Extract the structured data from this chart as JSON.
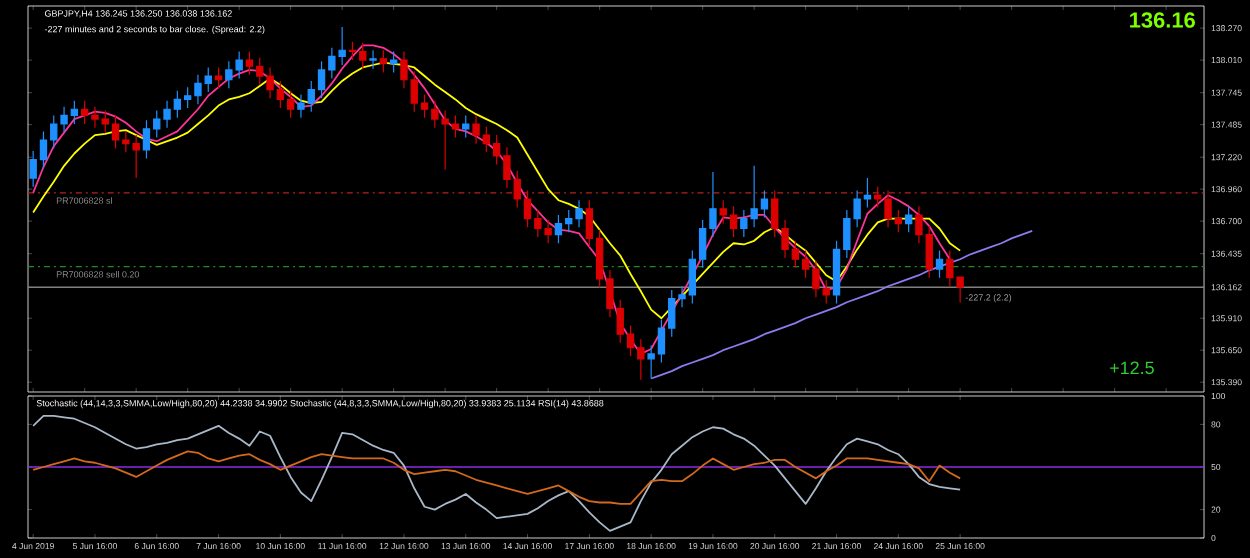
{
  "chart_data": [
    {
      "type": "candlestick",
      "annotations": [
        "GBPJPY,H4  136.245 136.250 136.038 136.162",
        "-227 minutes and 2 seconds to bar close. (Spread: 2.2)",
        "136.16",
        "+12.5",
        "-227.2 (2.2)"
      ],
      "categories": [
        null,
        null,
        null,
        null,
        null,
        null,
        null,
        null,
        null,
        null,
        null,
        null,
        null,
        null,
        null,
        null,
        null,
        null,
        null,
        null,
        null,
        null,
        null,
        null,
        null,
        null,
        null,
        null,
        null,
        null,
        null,
        null,
        null,
        null,
        null,
        null,
        null,
        null,
        null,
        null,
        null,
        null,
        null,
        null,
        null,
        null,
        null,
        null,
        null,
        null,
        null,
        null,
        null,
        null,
        null,
        null,
        null,
        null,
        null,
        null,
        null,
        null,
        null,
        null,
        null,
        null,
        null,
        null,
        null,
        null,
        null,
        null,
        null,
        null,
        null,
        null,
        null,
        null,
        null,
        null,
        null,
        null,
        null,
        null,
        null,
        null,
        null,
        null,
        null,
        null,
        null,
        null,
        null,
        null,
        null,
        null,
        null,
        null
      ],
      "ohlc": [
        [
          137.05,
          137.27,
          136.98,
          137.2
        ],
        [
          137.2,
          137.43,
          137.13,
          137.36
        ],
        [
          137.36,
          137.56,
          137.29,
          137.49
        ],
        [
          137.49,
          137.63,
          137.42,
          137.56
        ],
        [
          137.56,
          137.68,
          137.49,
          137.61
        ],
        [
          137.61,
          137.68,
          137.49,
          137.56
        ],
        [
          137.56,
          137.63,
          137.46,
          137.53
        ],
        [
          137.53,
          137.6,
          137.42,
          137.49
        ],
        [
          137.49,
          137.56,
          137.29,
          137.36
        ],
        [
          137.36,
          137.43,
          137.26,
          137.33
        ],
        [
          137.33,
          137.4,
          137.05,
          137.28
        ],
        [
          137.28,
          137.52,
          137.21,
          137.45
        ],
        [
          137.45,
          137.6,
          137.38,
          137.53
        ],
        [
          137.53,
          137.68,
          137.46,
          137.61
        ],
        [
          137.61,
          137.76,
          137.54,
          137.69
        ],
        [
          137.69,
          137.79,
          137.62,
          137.72
        ],
        [
          137.72,
          137.89,
          137.65,
          137.82
        ],
        [
          137.82,
          137.95,
          137.75,
          137.88
        ],
        [
          137.88,
          137.95,
          137.78,
          137.85
        ],
        [
          137.85,
          138.0,
          137.78,
          137.93
        ],
        [
          137.93,
          138.08,
          137.86,
          138.01
        ],
        [
          138.01,
          138.08,
          137.89,
          137.96
        ],
        [
          137.96,
          138.03,
          137.81,
          137.88
        ],
        [
          137.88,
          137.95,
          137.7,
          137.77
        ],
        [
          137.77,
          137.84,
          137.62,
          137.69
        ],
        [
          137.69,
          137.76,
          137.54,
          137.61
        ],
        [
          137.61,
          137.73,
          137.54,
          137.66
        ],
        [
          137.66,
          137.84,
          137.59,
          137.77
        ],
        [
          137.77,
          138.0,
          137.7,
          137.93
        ],
        [
          137.93,
          138.11,
          137.86,
          138.04
        ],
        [
          138.04,
          138.28,
          137.97,
          138.09
        ],
        [
          138.09,
          138.16,
          138.01,
          138.08
        ],
        [
          138.08,
          138.15,
          137.94,
          138.01
        ],
        [
          138.01,
          138.09,
          137.94,
          138.02
        ],
        [
          138.02,
          138.09,
          137.91,
          137.98
        ],
        [
          137.98,
          138.08,
          137.91,
          138.01
        ],
        [
          138.01,
          138.08,
          137.78,
          137.85
        ],
        [
          137.85,
          137.92,
          137.59,
          137.66
        ],
        [
          137.66,
          137.73,
          137.54,
          137.61
        ],
        [
          137.61,
          137.68,
          137.46,
          137.53
        ],
        [
          137.53,
          137.6,
          137.12,
          137.49
        ],
        [
          137.49,
          137.56,
          137.38,
          137.45
        ],
        [
          137.45,
          137.56,
          137.38,
          137.49
        ],
        [
          137.49,
          137.56,
          137.33,
          137.4
        ],
        [
          137.4,
          137.47,
          137.26,
          137.33
        ],
        [
          137.33,
          137.4,
          137.16,
          137.23
        ],
        [
          137.23,
          137.3,
          136.97,
          137.04
        ],
        [
          137.04,
          137.11,
          136.81,
          136.88
        ],
        [
          136.88,
          136.95,
          136.65,
          136.72
        ],
        [
          136.72,
          136.79,
          136.57,
          136.64
        ],
        [
          136.64,
          136.71,
          136.52,
          136.59
        ],
        [
          136.59,
          136.75,
          136.52,
          136.68
        ],
        [
          136.68,
          136.79,
          136.61,
          136.72
        ],
        [
          136.72,
          136.87,
          136.65,
          136.8
        ],
        [
          136.8,
          136.87,
          136.49,
          136.56
        ],
        [
          136.56,
          136.63,
          136.16,
          136.23
        ],
        [
          136.23,
          136.3,
          135.92,
          135.99
        ],
        [
          135.99,
          136.06,
          135.71,
          135.78
        ],
        [
          135.78,
          135.85,
          135.6,
          135.67
        ],
        [
          135.67,
          135.74,
          135.41,
          135.58
        ],
        [
          135.58,
          135.69,
          135.42,
          135.62
        ],
        [
          135.62,
          135.9,
          135.55,
          135.83
        ],
        [
          135.83,
          136.14,
          135.76,
          136.07
        ],
        [
          136.07,
          136.17,
          136.0,
          136.1
        ],
        [
          136.1,
          136.46,
          136.03,
          136.39
        ],
        [
          136.39,
          136.71,
          136.32,
          136.64
        ],
        [
          136.64,
          137.1,
          136.57,
          136.8
        ],
        [
          136.8,
          136.87,
          136.68,
          136.75
        ],
        [
          136.75,
          136.82,
          136.57,
          136.64
        ],
        [
          136.64,
          136.79,
          136.57,
          136.72
        ],
        [
          136.72,
          137.15,
          136.65,
          136.8
        ],
        [
          136.8,
          136.95,
          136.73,
          136.88
        ],
        [
          136.88,
          136.95,
          136.57,
          136.64
        ],
        [
          136.64,
          136.71,
          136.4,
          136.47
        ],
        [
          136.47,
          136.54,
          136.32,
          136.39
        ],
        [
          136.39,
          136.46,
          136.24,
          136.31
        ],
        [
          136.31,
          136.38,
          136.08,
          136.15
        ],
        [
          136.15,
          136.22,
          136.03,
          136.1
        ],
        [
          136.1,
          136.54,
          136.03,
          136.47
        ],
        [
          136.47,
          136.79,
          136.4,
          136.72
        ],
        [
          136.72,
          136.95,
          136.65,
          136.88
        ],
        [
          136.88,
          137.05,
          136.81,
          136.91
        ],
        [
          136.91,
          136.98,
          136.81,
          136.88
        ],
        [
          136.88,
          136.95,
          136.65,
          136.72
        ],
        [
          136.72,
          136.79,
          136.61,
          136.68
        ],
        [
          136.68,
          136.82,
          136.61,
          136.75
        ],
        [
          136.75,
          136.82,
          136.52,
          136.59
        ],
        [
          136.59,
          136.66,
          136.24,
          136.31
        ],
        [
          136.31,
          136.46,
          136.24,
          136.39
        ],
        [
          136.39,
          136.46,
          136.17,
          136.24
        ],
        [
          136.245,
          136.25,
          136.038,
          136.162
        ],
        null,
        null,
        null,
        null,
        null,
        null,
        null
      ],
      "colors": [
        "#1e90ff",
        "#1e90ff",
        "#1e90ff",
        "#1e90ff",
        "#1e90ff",
        "#dc0000",
        "#dc0000",
        "#dc0000",
        "#dc0000",
        "#dc0000",
        "#dc0000",
        "#1e90ff",
        "#1e90ff",
        "#1e90ff",
        "#1e90ff",
        "#1e90ff",
        "#1e90ff",
        "#1e90ff",
        "#dc0000",
        "#1e90ff",
        "#1e90ff",
        "#dc0000",
        "#dc0000",
        "#dc0000",
        "#dc0000",
        "#dc0000",
        "#1e90ff",
        "#1e90ff",
        "#1e90ff",
        "#1e90ff",
        "#1e90ff",
        "#dc0000",
        "#dc0000",
        "#1e90ff",
        "#dc0000",
        "#1e90ff",
        "#dc0000",
        "#dc0000",
        "#dc0000",
        "#dc0000",
        "#dc0000",
        "#dc0000",
        "#1e90ff",
        "#dc0000",
        "#dc0000",
        "#dc0000",
        "#dc0000",
        "#dc0000",
        "#dc0000",
        "#dc0000",
        "#dc0000",
        "#1e90ff",
        "#1e90ff",
        "#1e90ff",
        "#dc0000",
        "#dc0000",
        "#dc0000",
        "#dc0000",
        "#dc0000",
        "#dc0000",
        "#1e90ff",
        "#1e90ff",
        "#1e90ff",
        "#1e90ff",
        "#1e90ff",
        "#1e90ff",
        "#1e90ff",
        "#dc0000",
        "#dc0000",
        "#1e90ff",
        "#1e90ff",
        "#1e90ff",
        "#dc0000",
        "#dc0000",
        "#dc0000",
        "#dc0000",
        "#dc0000",
        "#dc0000",
        "#1e90ff",
        "#1e90ff",
        "#1e90ff",
        "#1e90ff",
        "#dc0000",
        "#dc0000",
        "#dc0000",
        "#1e90ff",
        "#dc0000",
        "#dc0000",
        "#1e90ff",
        "#dc0000",
        "#dc0000",
        null,
        null,
        null,
        null,
        null,
        null,
        null
      ],
      "series": [
        {
          "type": "line",
          "color": "#ffff00",
          "values": [
            136.77,
            136.9,
            137.02,
            137.15,
            137.25,
            137.33,
            137.4,
            137.41,
            137.43,
            137.44,
            137.4,
            137.36,
            137.32,
            137.35,
            137.38,
            137.42,
            137.49,
            137.56,
            137.64,
            137.69,
            137.71,
            137.74,
            137.8,
            137.86,
            137.81,
            137.74,
            137.68,
            137.66,
            137.67,
            137.76,
            137.84,
            137.9,
            137.95,
            137.97,
            137.99,
            137.98,
            137.97,
            137.95,
            137.88,
            137.81,
            137.75,
            137.69,
            137.62,
            137.57,
            137.53,
            137.49,
            137.44,
            137.38,
            137.24,
            137.1,
            136.96,
            136.87,
            136.84,
            136.8,
            136.74,
            136.63,
            136.52,
            136.42,
            136.27,
            136.13,
            135.98,
            135.91,
            136.0,
            136.09,
            136.18,
            136.27,
            136.36,
            136.45,
            136.52,
            136.51,
            136.54,
            136.61,
            136.65,
            136.59,
            136.52,
            136.46,
            136.36,
            136.26,
            136.21,
            136.33,
            136.47,
            136.59,
            136.69,
            136.72,
            136.72,
            136.72,
            136.72,
            136.72,
            136.64,
            136.52,
            136.46,
            null,
            null,
            null,
            null,
            null,
            null,
            null
          ]
        },
        {
          "type": "line",
          "color": "#ff3399",
          "values": [
            136.93,
            137.14,
            137.31,
            137.42,
            137.53,
            137.56,
            137.59,
            137.58,
            137.55,
            137.5,
            137.43,
            137.37,
            137.35,
            137.39,
            137.43,
            137.52,
            137.61,
            137.72,
            137.79,
            137.86,
            137.9,
            137.93,
            137.92,
            137.86,
            137.78,
            137.71,
            137.63,
            137.64,
            137.72,
            137.82,
            137.94,
            138.04,
            138.13,
            138.13,
            138.11,
            138.06,
            137.99,
            137.89,
            137.78,
            137.65,
            137.52,
            137.45,
            137.43,
            137.39,
            137.34,
            137.27,
            137.16,
            137.01,
            136.87,
            136.78,
            136.69,
            136.63,
            136.62,
            136.6,
            136.49,
            136.38,
            136.13,
            135.87,
            135.74,
            135.62,
            135.66,
            135.81,
            135.96,
            136.11,
            136.26,
            136.42,
            136.59,
            136.73,
            136.72,
            136.73,
            136.75,
            136.75,
            136.65,
            136.56,
            136.48,
            136.41,
            136.3,
            136.14,
            136.16,
            136.31,
            136.54,
            136.76,
            136.84,
            136.91,
            136.87,
            136.82,
            136.75,
            136.66,
            136.52,
            136.39,
            null,
            null,
            null,
            null,
            null,
            null,
            null,
            null
          ]
        },
        {
          "type": "line",
          "color": "#8a7cf0",
          "values": [
            null,
            null,
            null,
            null,
            null,
            null,
            null,
            null,
            null,
            null,
            null,
            null,
            null,
            null,
            null,
            null,
            null,
            null,
            null,
            null,
            null,
            null,
            null,
            null,
            null,
            null,
            null,
            null,
            null,
            null,
            null,
            null,
            null,
            null,
            null,
            null,
            null,
            null,
            null,
            null,
            null,
            null,
            null,
            null,
            null,
            null,
            null,
            null,
            null,
            null,
            null,
            null,
            null,
            null,
            null,
            null,
            null,
            null,
            null,
            null,
            135.42,
            135.45,
            135.48,
            135.52,
            135.55,
            135.58,
            135.61,
            135.65,
            135.68,
            135.71,
            135.74,
            135.78,
            135.81,
            135.84,
            135.87,
            135.91,
            135.94,
            135.97,
            136.0,
            136.04,
            136.07,
            136.1,
            136.13,
            136.17,
            136.2,
            136.23,
            136.26,
            136.3,
            136.33,
            136.36,
            136.39,
            136.43,
            136.46,
            136.49,
            136.52,
            136.56,
            136.59,
            136.62
          ]
        }
      ],
      "ref_lines": [
        {
          "axis": "y",
          "value": 136.93,
          "label": "PR7006828 sl",
          "color": "#b22222",
          "line_style": "dashed"
        },
        {
          "axis": "y",
          "value": 136.33,
          "label": "PR7006828 sell 0.20",
          "color": "#228b22",
          "line_style": "dashed"
        },
        {
          "axis": "y",
          "value": 136.162,
          "color": "#808080",
          "line_style": "solid"
        }
      ],
      "ylim": [
        135.31,
        138.45
      ],
      "yticks": [
        {
          "value": 138.27,
          "label": "138.270"
        },
        {
          "value": 138.01,
          "label": "138.010"
        },
        {
          "value": 137.745,
          "label": "137.745"
        },
        {
          "value": 137.485,
          "label": "137.485"
        },
        {
          "value": 137.22,
          "label": "137.220"
        },
        {
          "value": 136.96,
          "label": "136.960"
        },
        {
          "value": 136.7,
          "label": "136.700"
        },
        {
          "value": 136.435,
          "label": "136.435"
        },
        {
          "value": 136.162,
          "label": "136.162"
        },
        {
          "value": 135.91,
          "label": "135.910"
        },
        {
          "value": 135.65,
          "label": "135.650"
        },
        {
          "value": 135.39,
          "label": "135.390"
        }
      ],
      "tick_labels": "y"
    },
    {
      "type": "line",
      "annotations": [
        "Stochastic (44,14,3,3,SMMA,Low/High,80,20) 44.2338 34.9902  Stochastic (44,8,3,3,SMMA,Low/High,80,20) 33.9383 25.1134  RSI(14) 43.8688"
      ],
      "categories": [
        "4 Jun 2019",
        null,
        null,
        null,
        null,
        null,
        "5 Jun 16:00",
        null,
        null,
        null,
        null,
        null,
        "6 Jun 16:00",
        null,
        null,
        null,
        null,
        null,
        "7 Jun 16:00",
        null,
        null,
        null,
        null,
        null,
        "10 Jun 16:00",
        null,
        null,
        null,
        null,
        null,
        "11 Jun 16:00",
        null,
        null,
        null,
        null,
        null,
        "12 Jun 16:00",
        null,
        null,
        null,
        null,
        null,
        "13 Jun 16:00",
        null,
        null,
        null,
        null,
        null,
        "14 Jun 16:00",
        null,
        null,
        null,
        null,
        null,
        "17 Jun 16:00",
        null,
        null,
        null,
        null,
        null,
        "18 Jun 16:00",
        null,
        null,
        null,
        null,
        null,
        "19 Jun 16:00",
        null,
        null,
        null,
        null,
        null,
        "20 Jun 16:00",
        null,
        null,
        null,
        null,
        null,
        "21 Jun 16:00",
        null,
        null,
        null,
        null,
        null,
        "24 Jun 16:00",
        null,
        null,
        null,
        null,
        null,
        "25 Jun 16:00",
        null,
        null,
        null,
        null,
        null,
        null,
        null
      ],
      "series": [
        {
          "color": "#a9b8c8",
          "values": [
            79,
            86,
            86,
            85,
            84,
            81,
            78,
            74,
            70,
            66,
            63,
            64,
            66,
            67,
            69,
            70,
            73,
            76,
            79,
            74,
            70,
            65,
            75,
            72,
            57,
            43,
            32,
            26,
            41,
            57,
            74,
            73,
            69,
            65,
            62,
            60,
            51,
            35,
            22,
            20,
            24,
            27,
            31,
            25,
            20,
            14,
            15,
            16,
            17,
            21,
            26,
            30,
            33,
            26,
            18,
            11,
            5,
            8,
            11,
            26,
            39,
            48,
            59,
            65,
            71,
            75,
            78,
            77,
            73,
            70,
            65,
            58,
            51,
            42,
            33,
            24,
            35,
            47,
            57,
            66,
            70,
            68,
            66,
            62,
            59,
            52,
            43,
            38,
            36,
            35,
            34,
            null,
            null,
            null,
            null,
            null,
            null,
            null
          ]
        },
        {
          "color": "#d2691e",
          "values": [
            48,
            50,
            52,
            54,
            56,
            54,
            53,
            51,
            49,
            46,
            43,
            47,
            51,
            55,
            58,
            61,
            60,
            56,
            54,
            56,
            58,
            59,
            55,
            52,
            48,
            51,
            54,
            57,
            59,
            58,
            57,
            56,
            56,
            56,
            56,
            53,
            48,
            45,
            46,
            47,
            48,
            47,
            44,
            41,
            39,
            37,
            35,
            33,
            31,
            33,
            35,
            37,
            33,
            29,
            26,
            25,
            25,
            24,
            24,
            32,
            40,
            41,
            40,
            40,
            45,
            51,
            56,
            52,
            48,
            50,
            52,
            53,
            55,
            55,
            50,
            46,
            42,
            47,
            51,
            56,
            56,
            56,
            55,
            54,
            53,
            52,
            49,
            40,
            51,
            46,
            42,
            null,
            null,
            null,
            null,
            null,
            null,
            null
          ]
        }
      ],
      "ref_lines": [
        {
          "axis": "y",
          "value": 50,
          "color": "#8a2be2",
          "line_style": "solid"
        }
      ],
      "ylim": [
        0,
        100
      ],
      "yticks": [
        0,
        20,
        50,
        80,
        100
      ]
    }
  ]
}
